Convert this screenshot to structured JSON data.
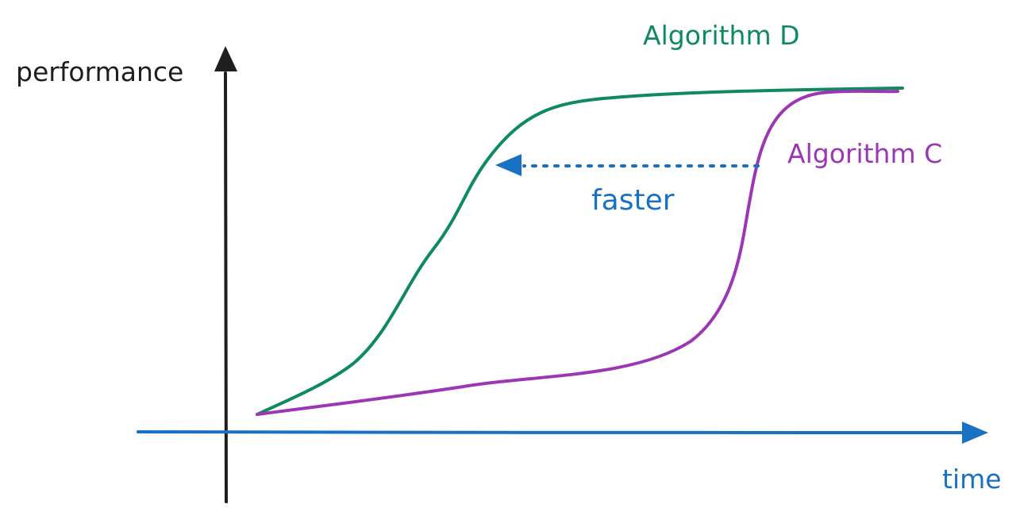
{
  "chart_data": {
    "type": "line",
    "xlabel": "time",
    "ylabel": "performance",
    "grid": false,
    "legend": "inline labels",
    "series": [
      {
        "name": "Algorithm D",
        "color": "#0f8a5f",
        "values": []
      },
      {
        "name": "Algorithm C",
        "color": "#9c36b5",
        "values": []
      }
    ],
    "annotations": [
      {
        "text": "faster",
        "color": "#1971c2",
        "arrow": "dotted arrow pointing left from Algorithm C curve to Algorithm D curve"
      }
    ]
  },
  "colors": {
    "axis_y": "#1e1e1e",
    "axis_x": "#1971c2",
    "algorithm_d": "#0f8a5f",
    "algorithm_c": "#9c36b5",
    "annotation": "#1971c2"
  }
}
